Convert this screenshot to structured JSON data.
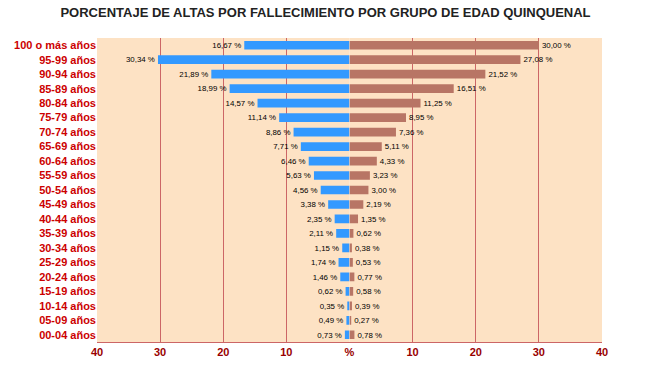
{
  "chart_data": [
    {
      "type": "bar",
      "title": "PORCENTAJE DE ALTAS POR FALLECIMIENTO POR GRUPO DE EDAD QUINQUENAL",
      "orientation": "horizontal",
      "grid": true,
      "data_labels": true,
      "color": "#3399ff",
      "categories": [
        "100 o más años",
        "95-99 años",
        "90-94 años",
        "85-89 años",
        "80-84 años",
        "75-79 años",
        "70-74 años",
        "65-69 años",
        "60-64 años",
        "55-59 años",
        "50-54 años",
        "45-49 años",
        "40-44 años",
        "35-39 años",
        "30-34 años",
        "25-29 años",
        "20-24 años",
        "15-19 años",
        "10-14 años",
        "05-09 años",
        "00-04 años"
      ],
      "values": [
        16.67,
        30.34,
        21.89,
        18.99,
        14.57,
        11.14,
        8.86,
        7.71,
        6.46,
        5.63,
        4.56,
        3.38,
        2.35,
        2.11,
        1.15,
        1.74,
        1.46,
        0.62,
        0.35,
        0.49,
        0.73
      ],
      "value_labels": [
        "16,67 %",
        "30,34 %",
        "21,89 %",
        "18,99 %",
        "14,57 %",
        "11,14 %",
        "8,86 %",
        "7,71 %",
        "6,46 %",
        "5,63 %",
        "4,56 %",
        "3,38 %",
        "2,35 %",
        "2,11 %",
        "1,15 %",
        "1,74 %",
        "1,46 %",
        "0,62 %",
        "0,35 %",
        "0,49 %",
        "0,73 %"
      ],
      "xlim": [
        40,
        0
      ],
      "xticks": [
        40,
        30,
        20,
        10
      ]
    },
    {
      "type": "bar",
      "orientation": "horizontal",
      "grid": true,
      "data_labels": true,
      "color": "#b87565",
      "tick_labels": "x",
      "categories": [
        "100 o más años",
        "95-99 años",
        "90-94 años",
        "85-89 años",
        "80-84 años",
        "75-79 años",
        "70-74 años",
        "65-69 años",
        "60-64 años",
        "55-59 años",
        "50-54 años",
        "45-49 años",
        "40-44 años",
        "35-39 años",
        "30-34 años",
        "25-29 años",
        "20-24 años",
        "15-19 años",
        "10-14 años",
        "05-09 años",
        "00-04 años"
      ],
      "values": [
        30.0,
        27.08,
        21.52,
        16.51,
        11.25,
        8.95,
        7.36,
        5.11,
        4.33,
        3.23,
        3.0,
        2.19,
        1.35,
        0.62,
        0.38,
        0.53,
        0.77,
        0.58,
        0.39,
        0.27,
        0.78
      ],
      "value_labels": [
        "30,00 %",
        "27,08 %",
        "21,52 %",
        "16,51 %",
        "11,25 %",
        "8,95 %",
        "7,36 %",
        "5,11 %",
        "4,33 %",
        "3,23 %",
        "3,00 %",
        "2,19 %",
        "1,35 %",
        "0,62 %",
        "0,38 %",
        "0,53 %",
        "0,77 %",
        "0,58 %",
        "0,39 %",
        "0,27 %",
        "0,78 %"
      ],
      "xlim": [
        0,
        40
      ],
      "xticks": [
        {
          "value": 0,
          "label": "%"
        },
        10,
        20,
        30,
        40
      ]
    }
  ]
}
